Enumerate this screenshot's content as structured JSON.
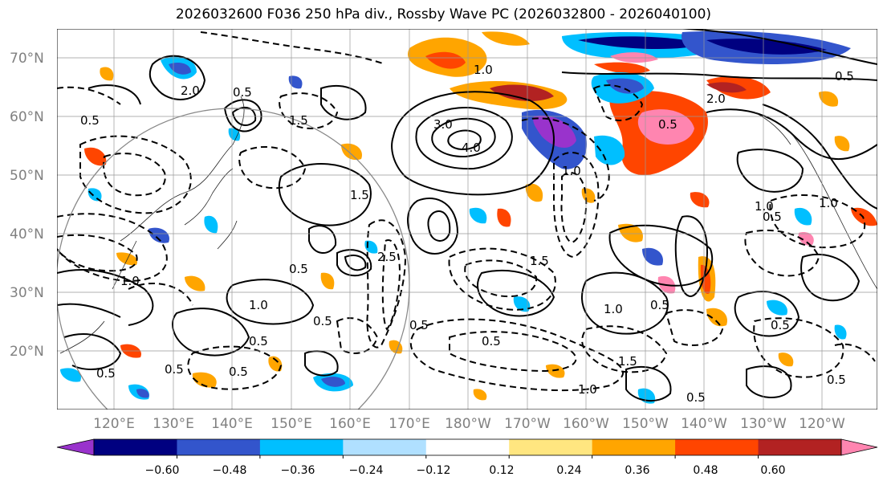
{
  "title": "2026032600 F036 250 hPa div., Rossby Wave PC (2026032800 - 2026040100)",
  "lat_labels": [
    "70°N",
    "60°N",
    "50°N",
    "40°N",
    "30°N",
    "20°N"
  ],
  "lon_labels": [
    "120°E",
    "130°E",
    "140°E",
    "150°E",
    "160°E",
    "170°E",
    "180°W",
    "170°W",
    "160°W",
    "150°W",
    "140°W",
    "130°W",
    "120°W"
  ],
  "colorbar": {
    "colors": [
      "#9933cc",
      "#000080",
      "#3355cc",
      "#00bfff",
      "#b0e0ff",
      "#ffffff",
      "#ffe680",
      "#ffa500",
      "#ff4500",
      "#b22222",
      "#ff85b0"
    ],
    "labels": [
      "−0.60",
      "−0.48",
      "−0.36",
      "−0.24",
      "−0.12",
      "0.12",
      "0.24",
      "0.36",
      "0.48",
      "0.60"
    ]
  },
  "contour_labels": [
    "4.0",
    "3.0",
    "2.0",
    "2.0",
    "1.5",
    "1.5",
    "1.5",
    "1.5",
    "1.0",
    "1.0",
    "1.0",
    "1.0",
    "1.0",
    "1.0",
    "0.5",
    "0.5",
    "0.5",
    "0.5",
    "0.5",
    "0.5",
    "0.5",
    "0.5",
    "0.5",
    "0.5",
    "0.5",
    "0.5",
    "0.5",
    "0.5",
    "0.5",
    "0.5",
    "0.5",
    "1.0",
    "1.0",
    "2.5"
  ]
}
